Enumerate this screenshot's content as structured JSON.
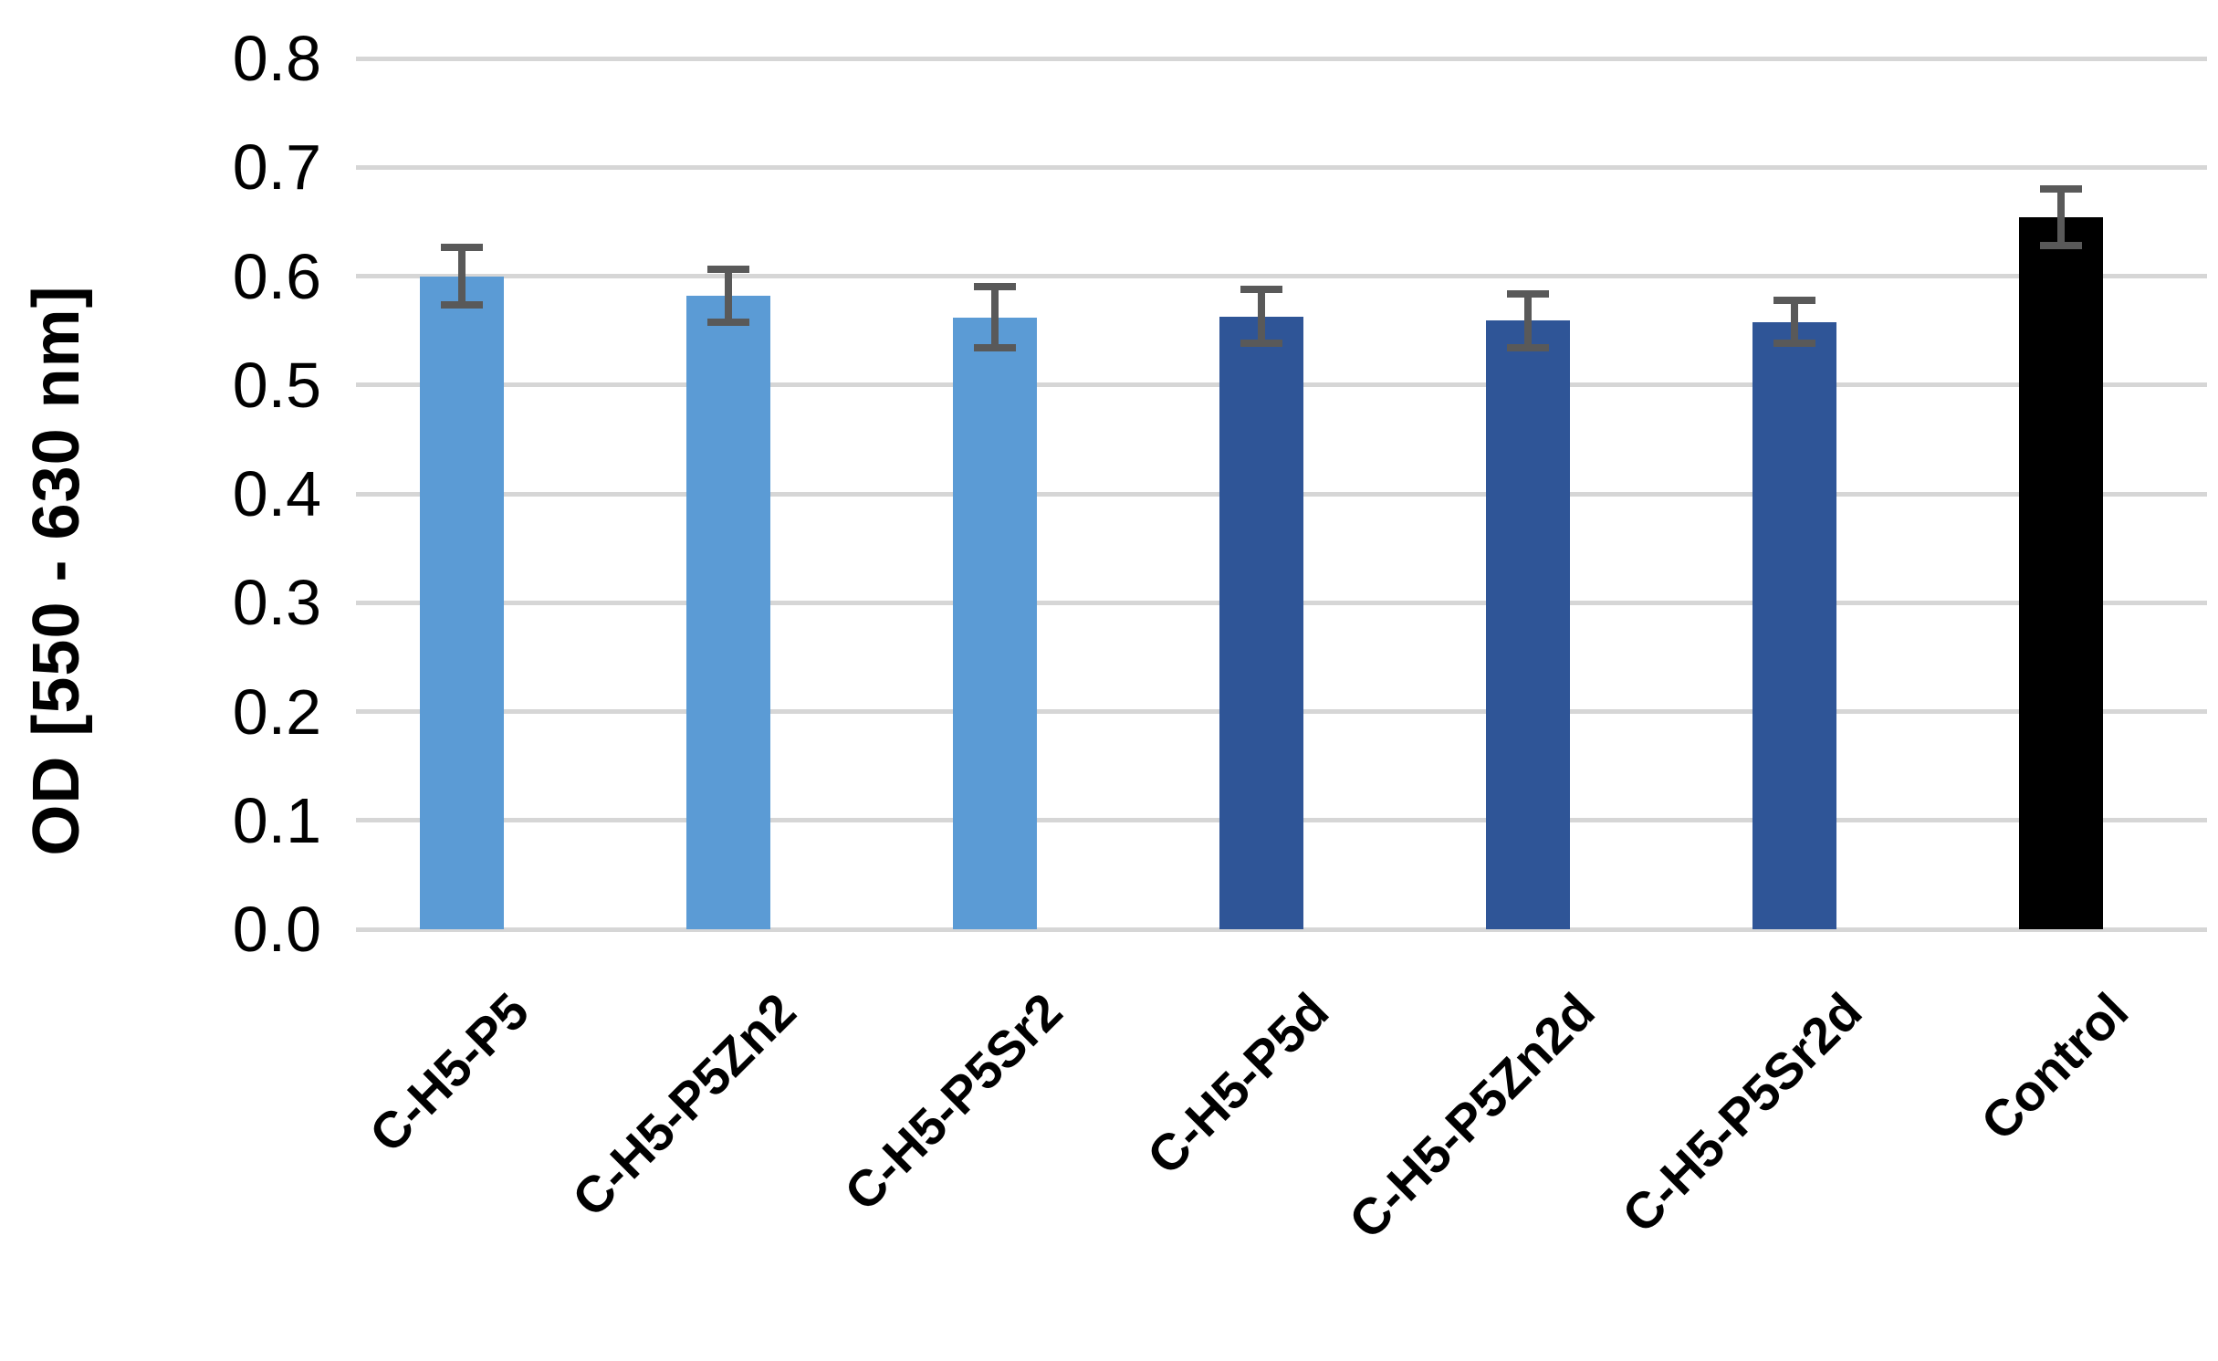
{
  "chart_data": {
    "type": "bar",
    "title": "",
    "xlabel": "",
    "ylabel": "OD [550 - 630 nm]",
    "categories": [
      "C-H5-P5",
      "C-H5-P5Zn2",
      "C-H5-P5Sr2",
      "C-H5-P5d",
      "C-H5-P5Zn2d",
      "C-H5-P5Sr2d",
      "Control"
    ],
    "values": [
      0.6,
      0.582,
      0.562,
      0.563,
      0.559,
      0.558,
      0.654
    ],
    "errors": [
      0.026,
      0.024,
      0.028,
      0.025,
      0.025,
      0.02,
      0.026
    ],
    "bar_colors": [
      "#5B9BD5",
      "#5B9BD5",
      "#5B9BD5",
      "#2F5597",
      "#2F5597",
      "#2F5597",
      "#000000"
    ],
    "error_bar_color": "#595959",
    "gridline_color": "#D6D6D6",
    "background_color": "#FFFFFF",
    "ylim": [
      0.0,
      0.8
    ],
    "ytick_step": 0.1,
    "ytick_labels": [
      "0.0",
      "0.1",
      "0.2",
      "0.3",
      "0.4",
      "0.5",
      "0.6",
      "0.7",
      "0.8"
    ],
    "grid": "horizontal",
    "legend": "none",
    "xtick_rotation_deg": 45
  }
}
